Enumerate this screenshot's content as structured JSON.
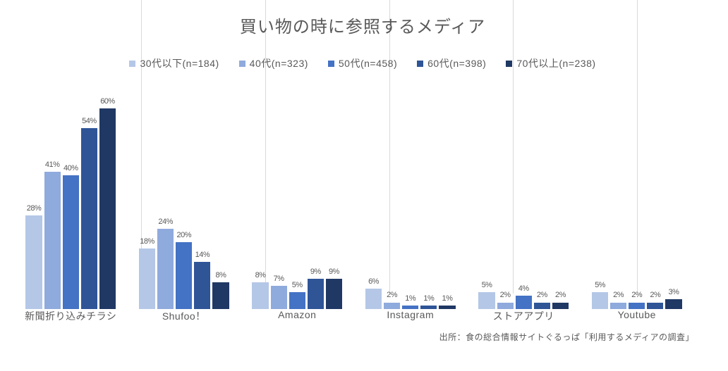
{
  "chart": {
    "type": "bar",
    "title": "買い物の時に参照するメディア",
    "title_fontsize": 24,
    "title_color": "#595959",
    "background_color": "#ffffff",
    "grid_color": "#d9d9d9",
    "label_color": "#595959",
    "label_fontsize": 14,
    "datalabel_fontsize": 11,
    "y_max_percent": 65,
    "series": [
      {
        "name": "30代以下(n=184)",
        "color": "#b4c7e7"
      },
      {
        "name": "40代(n=323)",
        "color": "#8faadc"
      },
      {
        "name": "50代(n=458)",
        "color": "#4472c4"
      },
      {
        "name": "60代(n=398)",
        "color": "#2f5597"
      },
      {
        "name": "70代以上(n=238)",
        "color": "#203864"
      }
    ],
    "categories": [
      {
        "label": "新聞折り込みチラシ",
        "values": [
          28,
          41,
          40,
          54,
          60
        ]
      },
      {
        "label": "Shufoo！",
        "values": [
          18,
          24,
          20,
          14,
          8
        ]
      },
      {
        "label": "Amazon",
        "values": [
          8,
          7,
          5,
          9,
          9
        ]
      },
      {
        "label": "Instagram",
        "values": [
          6,
          2,
          1,
          1,
          1
        ]
      },
      {
        "label": "ストアアプリ",
        "values": [
          5,
          2,
          4,
          2,
          2
        ]
      },
      {
        "label": "Youtube",
        "values": [
          5,
          2,
          2,
          2,
          3
        ]
      }
    ],
    "source": "出所：食の総合情報サイトぐるっぱ「利用するメディアの調査」"
  }
}
